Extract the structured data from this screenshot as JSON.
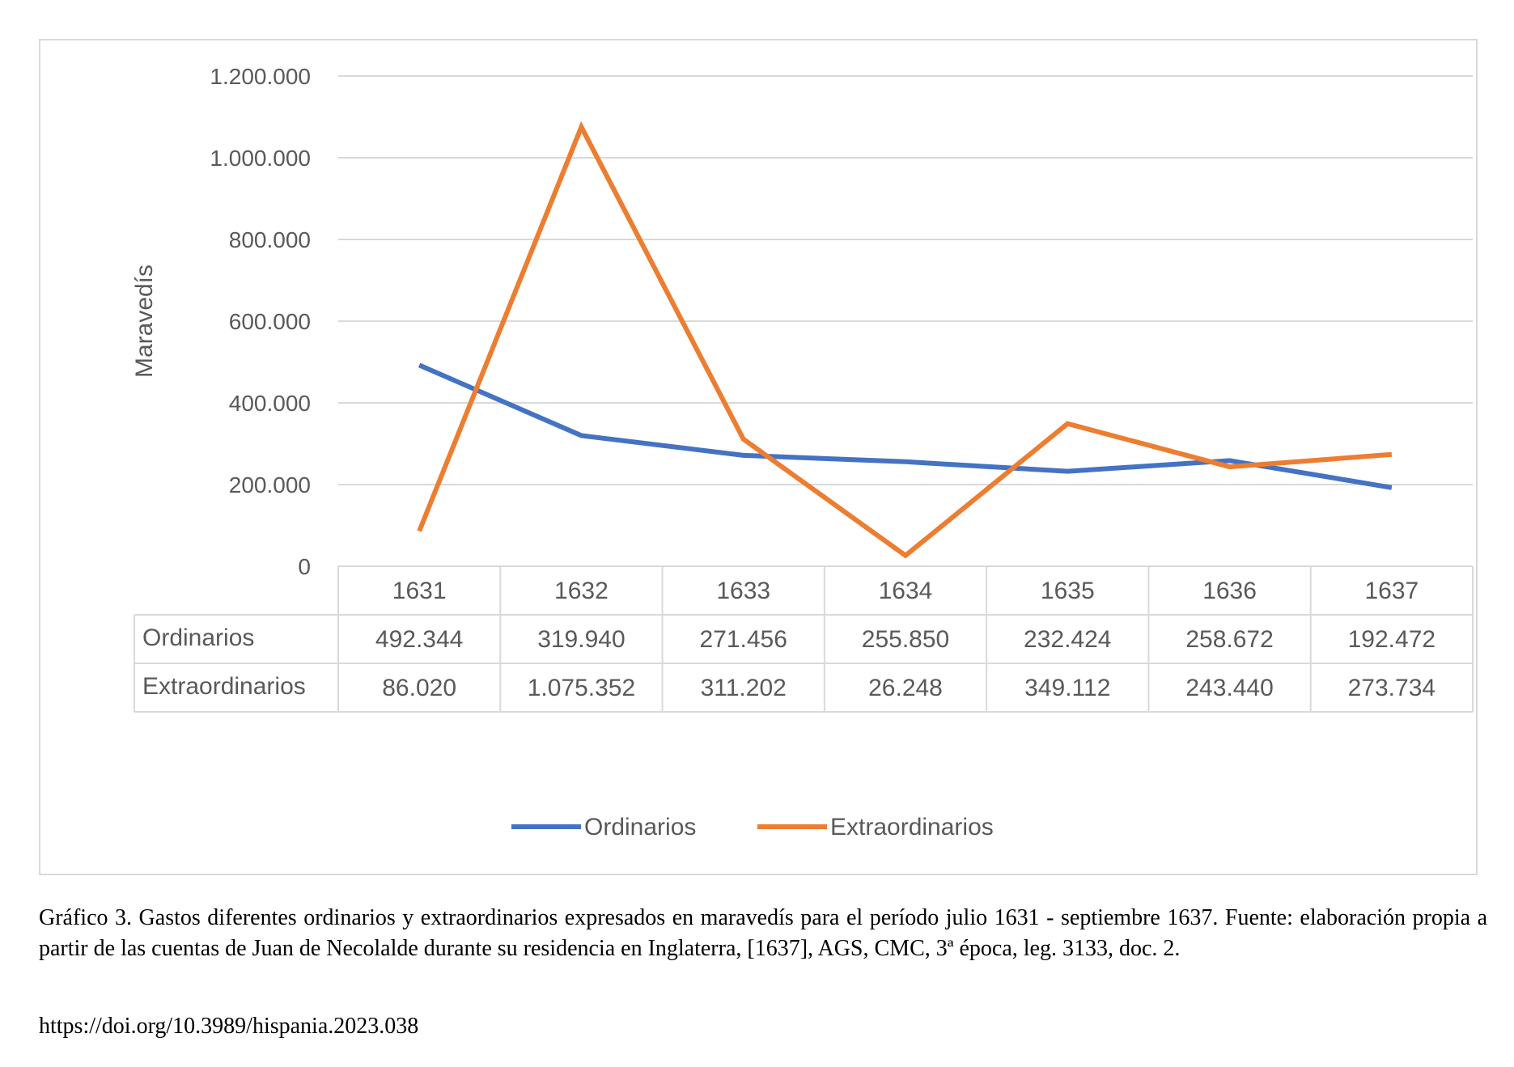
{
  "chart_data": {
    "type": "line",
    "ylabel": "Maravedís",
    "ylim": [
      0,
      1200000
    ],
    "yticks": [
      0,
      200000,
      400000,
      600000,
      800000,
      1000000,
      1200000
    ],
    "ytick_labels": [
      "0",
      "200.000",
      "400.000",
      "600.000",
      "800.000",
      "1.000.000",
      "1.200.000"
    ],
    "categories": [
      "1631",
      "1632",
      "1633",
      "1634",
      "1635",
      "1636",
      "1637"
    ],
    "series": [
      {
        "name": "Ordinarios",
        "color": "#4472c4",
        "values": [
          492344,
          319940,
          271456,
          255850,
          232424,
          258672,
          192472
        ],
        "labels": [
          "492.344",
          "319.940",
          "271.456",
          "255.850",
          "232.424",
          "258.672",
          "192.472"
        ]
      },
      {
        "name": "Extraordinarios",
        "color": "#ed7d31",
        "values": [
          86020,
          1075352,
          311202,
          26248,
          349112,
          243440,
          273734
        ],
        "labels": [
          "86.020",
          "1.075.352",
          "311.202",
          "26.248",
          "349.112",
          "243.440",
          "273.734"
        ]
      }
    ],
    "grid": true,
    "legend_position": "bottom",
    "data_table": true
  },
  "caption": {
    "text": "Gráfico 3. Gastos diferentes ordinarios y extraordinarios expresados en maravedís para el período julio 1631 - septiembre 1637. Fuente: elaboración propia a partir de las cuentas de Juan de Necolalde durante su residencia en Inglaterra, [1637], AGS, CMC, 3ª época, leg. 3133, doc. 2.",
    "doi": "https://doi.org/10.3989/hispania.2023.038"
  }
}
